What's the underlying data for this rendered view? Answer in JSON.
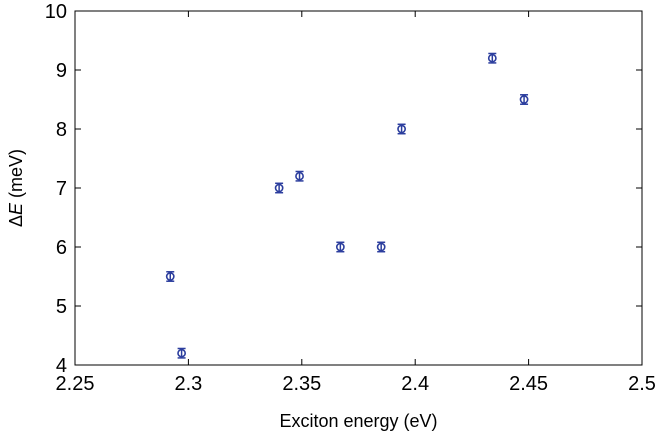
{
  "chart_data": {
    "type": "scatter",
    "title": "",
    "xlabel": "Exciton energy (eV)",
    "ylabel_prefix": "Δ",
    "ylabel_var": "E",
    "ylabel_suffix": " (meV)",
    "xlim": [
      2.25,
      2.5
    ],
    "ylim": [
      4,
      10
    ],
    "xticks": [
      "2.25",
      "2.3",
      "2.35",
      "2.4",
      "2.45",
      "2.5"
    ],
    "yticks": [
      "4",
      "5",
      "6",
      "7",
      "8",
      "9",
      "10"
    ],
    "grid": false,
    "legend": "none",
    "marker": "open-circle",
    "color": "#2c3e9e",
    "series": [
      {
        "x": [
          2.292,
          2.297,
          2.34,
          2.349,
          2.367,
          2.385,
          2.394,
          2.434,
          2.448
        ],
        "y": [
          5.5,
          4.2,
          7.0,
          7.2,
          6.0,
          6.0,
          8.0,
          9.2,
          8.5
        ],
        "yerr": [
          0.08,
          0.08,
          0.08,
          0.08,
          0.08,
          0.08,
          0.08,
          0.08,
          0.08
        ]
      }
    ]
  }
}
